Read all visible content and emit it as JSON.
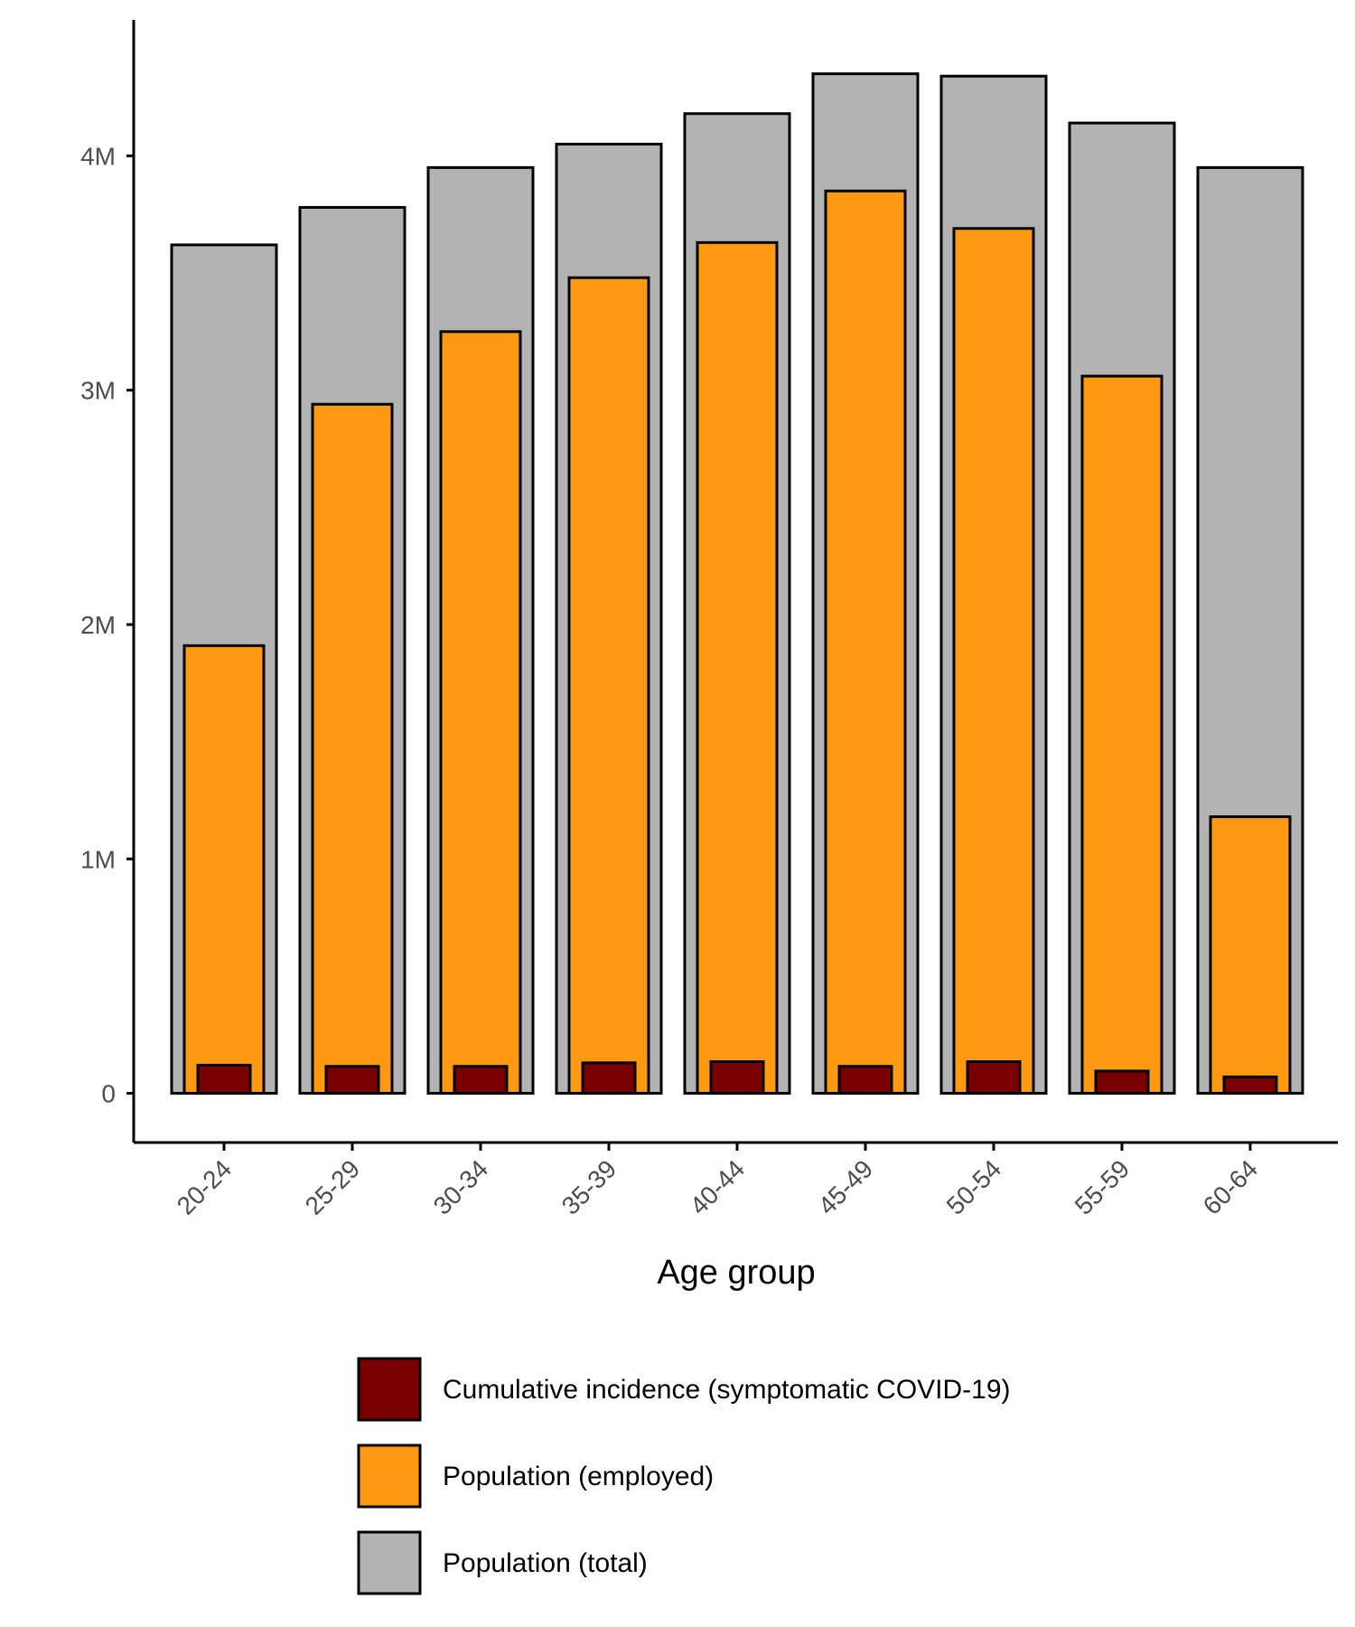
{
  "chart_data": {
    "type": "bar",
    "title": "",
    "xlabel": "Age group",
    "ylabel": "",
    "categories": [
      "20-24",
      "25-29",
      "30-34",
      "35-39",
      "40-44",
      "45-49",
      "50-54",
      "55-59",
      "60-64"
    ],
    "series": [
      {
        "name": "Population (total)",
        "color": "#b3b3b3",
        "values": [
          3620000,
          3780000,
          3950000,
          4050000,
          4180000,
          4350000,
          4340000,
          4140000,
          3950000
        ]
      },
      {
        "name": "Population (employed)",
        "color": "#ff9912",
        "values": [
          1910000,
          2940000,
          3250000,
          3480000,
          3630000,
          3850000,
          3690000,
          3060000,
          1180000
        ]
      },
      {
        "name": "Cumulative incidence (symptomatic COVID-19)",
        "color": "#7a0000",
        "values": [
          120000,
          115000,
          115000,
          130000,
          135000,
          115000,
          135000,
          95000,
          70000
        ]
      }
    ],
    "legend_order": [
      "Cumulative incidence (symptomatic COVID-19)",
      "Population (employed)",
      "Population (total)"
    ],
    "yticks": [
      0,
      1000000,
      2000000,
      3000000,
      4000000
    ],
    "ytick_labels": [
      "0",
      "1M",
      "2M",
      "3M",
      "4M"
    ],
    "ylim": [
      -210000,
      4580000
    ],
    "grid": false,
    "legend_position": "bottom"
  }
}
